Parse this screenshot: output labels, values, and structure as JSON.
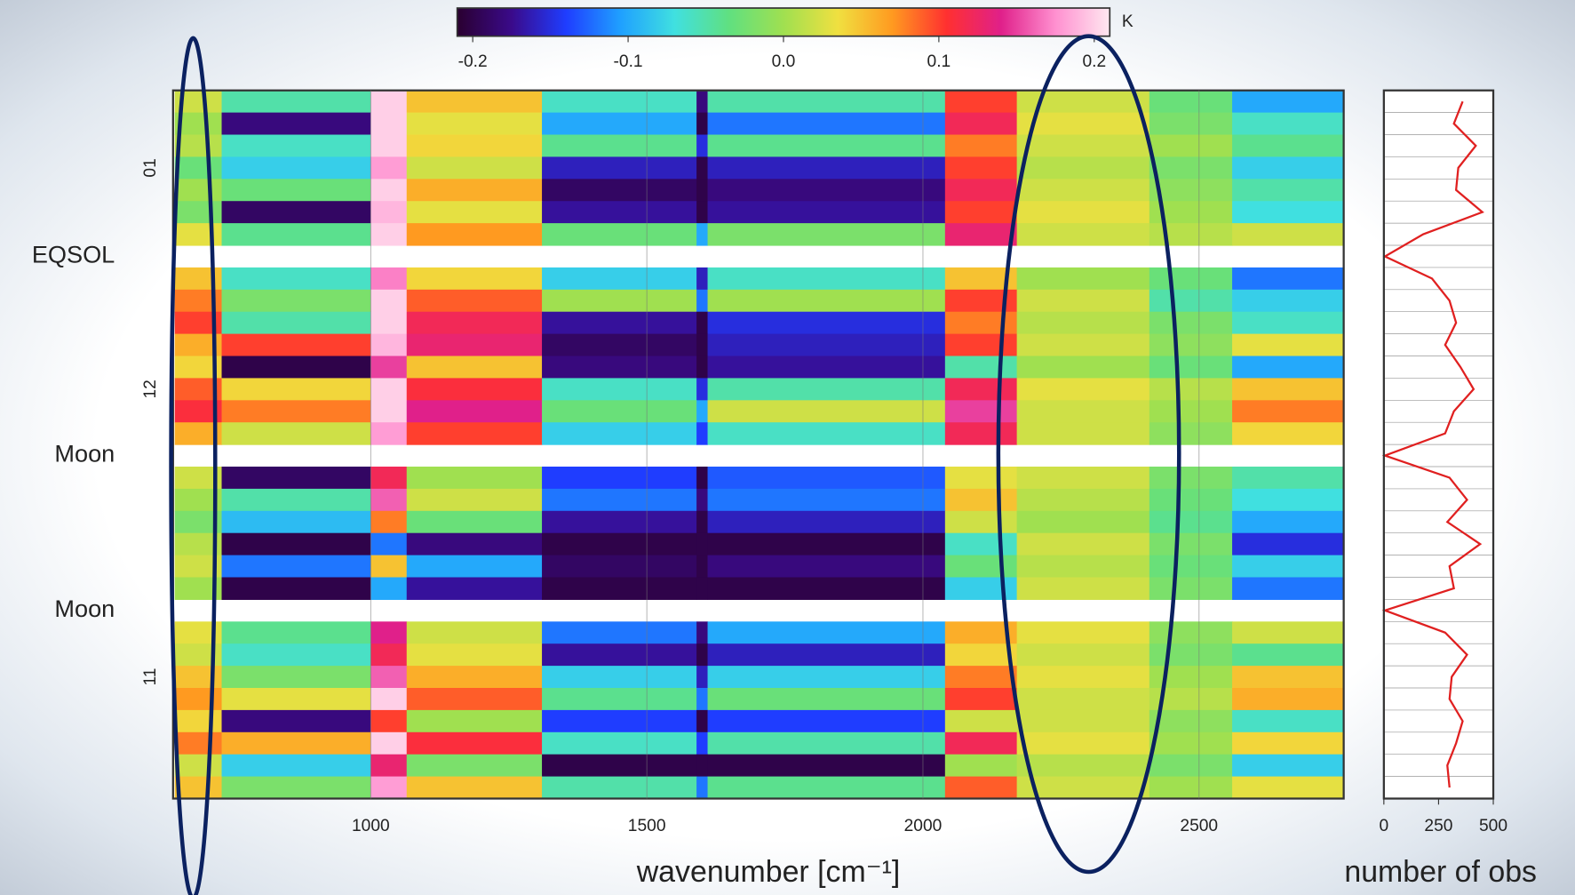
{
  "chart_data": [
    {
      "type": "heatmap",
      "x_edges": [
        645,
        730,
        1000,
        1065,
        1310,
        1590,
        1610,
        2040,
        2170,
        2410,
        2560,
        2760
      ],
      "xlim": [
        642,
        2762
      ],
      "xticks": [
        1000,
        1500,
        2000,
        2500
      ],
      "xlabel": "wavenumber [cm⁻¹]",
      "categories": [
        null,
        null,
        null,
        "01",
        null,
        null,
        null,
        null,
        null,
        null,
        null,
        null,
        null,
        "12",
        null,
        null,
        null,
        null,
        null,
        null,
        null,
        null,
        null,
        null,
        null,
        null,
        "11",
        null,
        null,
        null,
        null,
        null
      ],
      "row_notes": [
        null,
        null,
        null,
        null,
        null,
        null,
        null,
        "EQSOL",
        null,
        null,
        null,
        null,
        null,
        null,
        null,
        null,
        "Moon",
        null,
        null,
        null,
        null,
        null,
        null,
        "Moon",
        null,
        null,
        null,
        null,
        null,
        null,
        null,
        null
      ],
      "values": [
        [
          0.02,
          -0.05,
          0.2,
          0.05,
          -0.06,
          -0.18,
          -0.05,
          0.1,
          0.02,
          -0.03,
          -0.1
        ],
        [
          0.0,
          -0.18,
          0.2,
          0.03,
          -0.1,
          -0.2,
          -0.12,
          0.12,
          0.03,
          -0.02,
          -0.06
        ],
        [
          0.01,
          -0.06,
          0.2,
          0.04,
          -0.04,
          -0.15,
          -0.04,
          0.08,
          0.02,
          0.0,
          -0.04
        ],
        [
          -0.03,
          -0.08,
          0.18,
          0.02,
          -0.16,
          -0.2,
          -0.16,
          0.1,
          0.01,
          -0.02,
          -0.08
        ],
        [
          0.0,
          -0.03,
          0.2,
          0.06,
          -0.19,
          -0.2,
          -0.18,
          0.12,
          0.02,
          -0.01,
          -0.05
        ],
        [
          -0.02,
          -0.19,
          0.19,
          0.03,
          -0.17,
          -0.2,
          -0.17,
          0.1,
          0.03,
          0.0,
          -0.07
        ],
        [
          0.03,
          -0.04,
          0.2,
          0.07,
          -0.03,
          -0.1,
          -0.02,
          0.13,
          0.02,
          0.01,
          0.02
        ],
        null,
        [
          0.05,
          -0.06,
          0.17,
          0.04,
          -0.08,
          -0.16,
          -0.06,
          0.05,
          0.0,
          -0.03,
          -0.12
        ],
        [
          0.08,
          -0.02,
          0.2,
          0.09,
          0.0,
          -0.12,
          0.0,
          0.1,
          0.02,
          -0.05,
          -0.08
        ],
        [
          0.1,
          -0.05,
          0.2,
          0.12,
          -0.17,
          -0.2,
          -0.15,
          0.08,
          0.01,
          -0.02,
          -0.06
        ],
        [
          0.06,
          0.1,
          0.19,
          0.13,
          -0.19,
          -0.2,
          -0.16,
          0.1,
          0.02,
          -0.01,
          0.03
        ],
        [
          0.04,
          -0.2,
          0.15,
          0.05,
          -0.18,
          -0.2,
          -0.17,
          -0.05,
          0.0,
          -0.03,
          -0.1
        ],
        [
          0.09,
          0.04,
          0.2,
          0.11,
          -0.06,
          -0.15,
          -0.05,
          0.12,
          0.03,
          0.01,
          0.05
        ],
        [
          0.11,
          0.08,
          0.2,
          0.14,
          -0.03,
          -0.1,
          0.02,
          0.15,
          0.02,
          0.0,
          0.08
        ],
        [
          0.06,
          0.02,
          0.18,
          0.1,
          -0.08,
          -0.14,
          -0.06,
          0.12,
          0.02,
          -0.01,
          0.04
        ],
        null,
        [
          0.02,
          -0.19,
          0.12,
          0.0,
          -0.14,
          -0.2,
          -0.13,
          0.03,
          0.02,
          -0.02,
          -0.05
        ],
        [
          0.0,
          -0.05,
          0.16,
          0.02,
          -0.12,
          -0.18,
          -0.12,
          0.05,
          0.01,
          -0.03,
          -0.07
        ],
        [
          -0.02,
          -0.09,
          0.08,
          -0.03,
          -0.17,
          -0.2,
          -0.16,
          0.02,
          0.0,
          -0.04,
          -0.1
        ],
        [
          0.01,
          -0.2,
          -0.12,
          -0.18,
          -0.2,
          -0.2,
          -0.2,
          -0.06,
          0.02,
          -0.02,
          -0.15
        ],
        [
          0.02,
          -0.12,
          0.05,
          -0.1,
          -0.19,
          -0.2,
          -0.18,
          -0.03,
          0.01,
          -0.03,
          -0.08
        ],
        [
          0.0,
          -0.2,
          -0.1,
          -0.17,
          -0.2,
          -0.2,
          -0.2,
          -0.08,
          0.02,
          -0.02,
          -0.12
        ],
        null,
        [
          0.03,
          -0.04,
          0.14,
          0.02,
          -0.12,
          -0.18,
          -0.1,
          0.06,
          0.03,
          -0.01,
          0.02
        ],
        [
          0.02,
          -0.06,
          0.12,
          0.03,
          -0.17,
          -0.2,
          -0.16,
          0.04,
          0.02,
          -0.02,
          -0.04
        ],
        [
          0.05,
          -0.02,
          0.16,
          0.06,
          -0.08,
          -0.16,
          -0.08,
          0.08,
          0.03,
          0.0,
          0.05
        ],
        [
          0.07,
          0.03,
          0.2,
          0.09,
          -0.04,
          -0.12,
          -0.03,
          0.1,
          0.02,
          0.01,
          0.06
        ],
        [
          0.04,
          -0.18,
          0.1,
          0.0,
          -0.14,
          -0.2,
          -0.14,
          0.02,
          0.02,
          -0.01,
          -0.06
        ],
        [
          0.08,
          0.06,
          0.2,
          0.11,
          -0.06,
          -0.14,
          -0.05,
          0.12,
          0.03,
          0.0,
          0.04
        ],
        [
          0.02,
          -0.08,
          0.13,
          -0.02,
          -0.2,
          -0.2,
          -0.2,
          0.0,
          0.01,
          -0.02,
          -0.08
        ],
        [
          0.05,
          -0.02,
          0.18,
          0.05,
          -0.05,
          -0.12,
          -0.04,
          0.09,
          0.02,
          0.0,
          0.03
        ]
      ],
      "clim": [
        -0.21,
        0.21
      ],
      "cticks": [
        -0.2,
        -0.1,
        {
          "value": 0,
          "label": "0.0"
        },
        0.1,
        0.2
      ],
      "colorbar_label": "K",
      "colormap": [
        "#2a0030",
        "#3a0a8a",
        "#1f3dff",
        "#1fa0ff",
        "#40e0e0",
        "#60e080",
        "#a0e050",
        "#f0e040",
        "#ff9a20",
        "#ff3030",
        "#e0208a",
        "#ff90d0",
        "#ffe8f0"
      ]
    },
    {
      "type": "line",
      "values": [
        360,
        320,
        420,
        340,
        330,
        450,
        180,
        5,
        220,
        300,
        330,
        280,
        350,
        410,
        320,
        280,
        5,
        300,
        380,
        290,
        440,
        300,
        320,
        5,
        280,
        380,
        310,
        300,
        360,
        330,
        290,
        300
      ],
      "color": "#e02020",
      "xlim": [
        0,
        500
      ],
      "xticks": [
        0,
        250,
        500
      ],
      "xlabel": "number of obs"
    }
  ]
}
